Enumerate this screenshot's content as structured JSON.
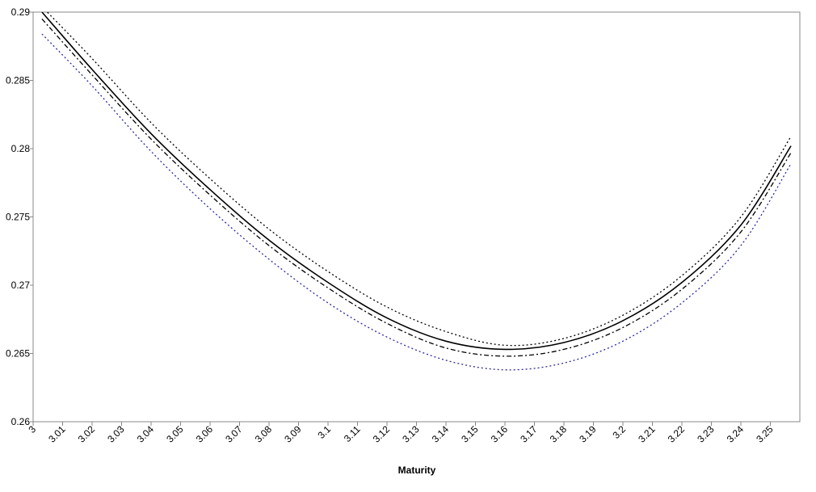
{
  "chart_data": {
    "type": "line",
    "x_label": "Maturity",
    "x": [
      3.003,
      3.02,
      3.04,
      3.06,
      3.08,
      3.1,
      3.12,
      3.14,
      3.16,
      3.18,
      3.2,
      3.22,
      3.24,
      3.257
    ],
    "series": [
      {
        "color": "#000000",
        "style": "dotted",
        "values": [
          0.2904,
          0.2866,
          0.2819,
          0.2778,
          0.2741,
          0.271,
          0.2684,
          0.2666,
          0.2656,
          0.2661,
          0.2678,
          0.2707,
          0.275,
          0.2809
        ]
      },
      {
        "color": "#000000",
        "style": "solid",
        "values": [
          0.29,
          0.2858,
          0.2811,
          0.277,
          0.2733,
          0.2702,
          0.2676,
          0.2659,
          0.2653,
          0.2658,
          0.2674,
          0.2702,
          0.2744,
          0.2802
        ]
      },
      {
        "color": "#000000",
        "style": "dashdot",
        "values": [
          0.2895,
          0.2854,
          0.2807,
          0.2766,
          0.2729,
          0.2698,
          0.2672,
          0.2654,
          0.2648,
          0.2653,
          0.2669,
          0.2697,
          0.2739,
          0.2797
        ]
      },
      {
        "color": "#2a2aa0",
        "style": "dotted",
        "values": [
          0.2884,
          0.2846,
          0.2798,
          0.2756,
          0.2719,
          0.2687,
          0.2662,
          0.2645,
          0.2638,
          0.2643,
          0.2659,
          0.2687,
          0.2729,
          0.2789
        ]
      }
    ],
    "xlim": [
      3,
      3.26
    ],
    "xticks": [
      3,
      3.01,
      3.02,
      3.03,
      3.04,
      3.05,
      3.06,
      3.07,
      3.08,
      3.09,
      3.1,
      3.11,
      3.12,
      3.13,
      3.14,
      3.15,
      3.16,
      3.17,
      3.18,
      3.19,
      3.2,
      3.21,
      3.22,
      3.23,
      3.24,
      3.25
    ],
    "ylim": [
      0.26,
      0.29
    ],
    "yticks": [
      0.26,
      0.265,
      0.27,
      0.275,
      0.28,
      0.285,
      0.29
    ],
    "grid": false
  }
}
